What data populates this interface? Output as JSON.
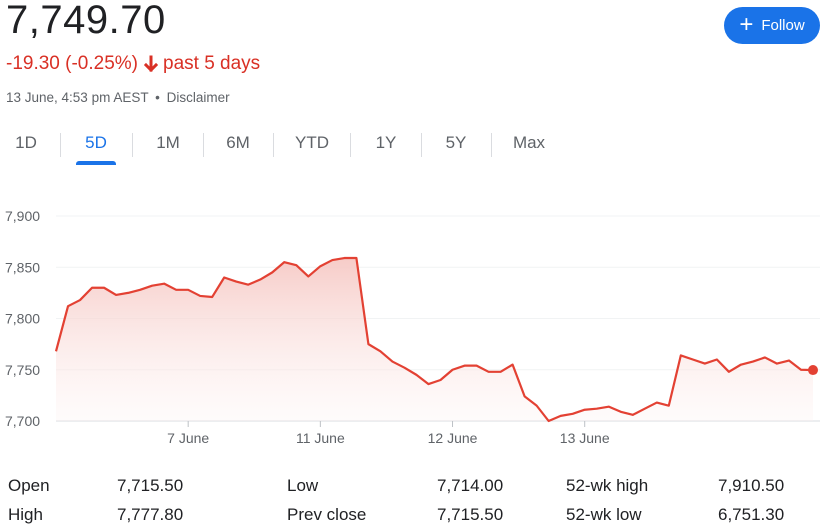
{
  "header": {
    "price": "7,749.70",
    "change": "-19.30 (-0.25%)",
    "period": "past 5 days",
    "timestamp": "13 June, 4:53 pm AEST",
    "separator": "•",
    "disclaimer": "Disclaimer",
    "follow_label": "Follow"
  },
  "colors": {
    "negative": "#d93025",
    "accent": "#1a73e8",
    "line": "#e34133",
    "grid": "#f1f3f4"
  },
  "tabs": [
    {
      "label": "1D"
    },
    {
      "label": "5D",
      "active": true
    },
    {
      "label": "1M"
    },
    {
      "label": "6M"
    },
    {
      "label": "YTD"
    },
    {
      "label": "1Y"
    },
    {
      "label": "5Y"
    },
    {
      "label": "Max"
    }
  ],
  "chart_data": {
    "type": "area",
    "title": "",
    "xlabel": "",
    "ylabel": "",
    "ylim": [
      7700,
      7900
    ],
    "yticks": [
      7700,
      7750,
      7800,
      7850,
      7900
    ],
    "ytick_labels": [
      "7,700",
      "7,750",
      "7,800",
      "7,850",
      "7,900"
    ],
    "xtick_labels": [
      {
        "label": "7 June",
        "at": 11
      },
      {
        "label": "11 June",
        "at": 22
      },
      {
        "label": "12 June",
        "at": 33
      },
      {
        "label": "13 June",
        "at": 44
      }
    ],
    "grid": true,
    "series": [
      {
        "values": [
          7768,
          7812,
          7818,
          7830,
          7830,
          7823,
          7825,
          7828,
          7832,
          7834,
          7828,
          7828,
          7822,
          7821,
          7840,
          7836,
          7833,
          7838,
          7845,
          7855,
          7852,
          7841,
          7851,
          7857,
          7859,
          7859,
          7775,
          7768,
          7758,
          7752,
          7745,
          7736,
          7740,
          7750,
          7754,
          7754,
          7748,
          7748,
          7755,
          7724,
          7715,
          7700,
          7705,
          7707,
          7711,
          7712,
          7714,
          7709,
          7706,
          7712,
          7718,
          7715,
          7764,
          7760,
          7756,
          7760,
          7748,
          7755,
          7758,
          7762,
          7756,
          7759,
          7750,
          7749.7
        ]
      }
    ]
  },
  "stats": [
    {
      "label": "Open",
      "value": "7,715.50"
    },
    {
      "label": "High",
      "value": "7,777.80"
    },
    {
      "label": "Low",
      "value": "7,714.00"
    },
    {
      "label": "Prev close",
      "value": "7,715.50"
    },
    {
      "label": "52-wk high",
      "value": "7,910.50"
    },
    {
      "label": "52-wk low",
      "value": "6,751.30"
    }
  ]
}
